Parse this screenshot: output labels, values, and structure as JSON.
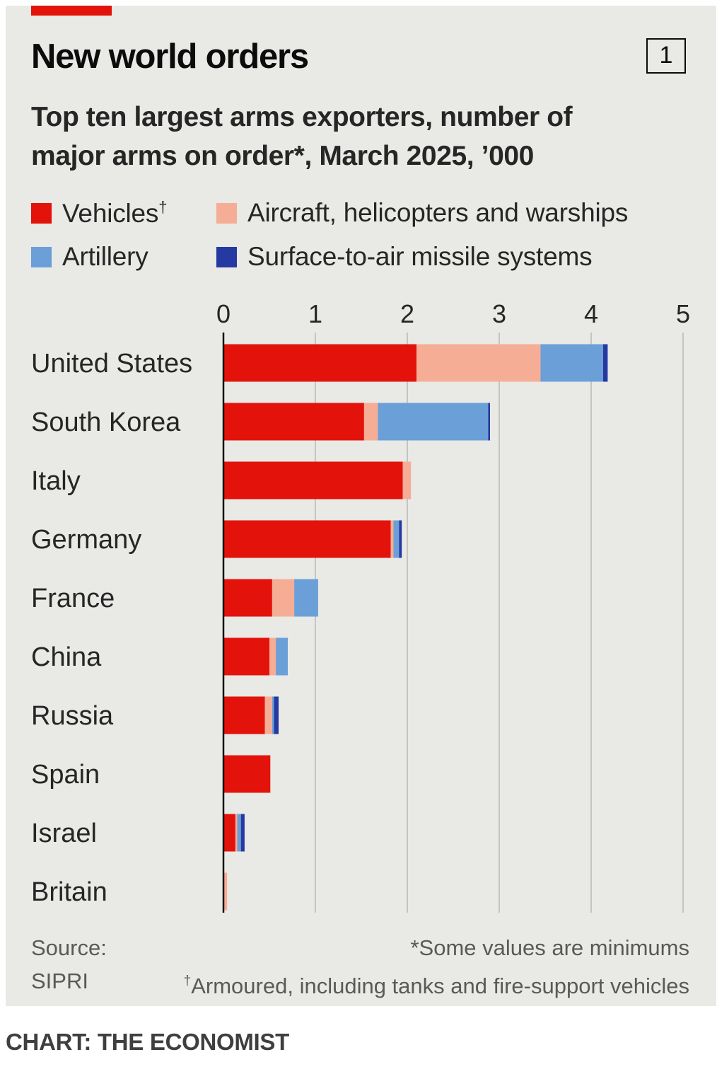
{
  "title": "New world orders",
  "chart_number": "1",
  "subtitle": "Top ten largest arms exporters, number of major arms on order*, March 2025, ’000",
  "footer": {
    "source_label": "Source:",
    "source_name": "SIPRI",
    "note_minimums": "*Some values are minimums",
    "note_armoured_mark": "†",
    "note_armoured": "Armoured, including tanks and fire-support vehicles",
    "credit": "CHART: THE ECONOMIST"
  },
  "chart_data": {
    "type": "bar",
    "orientation": "horizontal",
    "stacked": true,
    "title": "New world orders",
    "subtitle": "Top ten largest arms exporters, number of major arms on order*, March 2025, ’000",
    "legend_position": "top",
    "grid": true,
    "xlim": [
      0,
      5
    ],
    "x_ticks": [
      "0",
      "1",
      "2",
      "3",
      "4",
      "5"
    ],
    "categories": [
      "United States",
      "South Korea",
      "Italy",
      "Germany",
      "France",
      "China",
      "Russia",
      "Spain",
      "Israel",
      "Britain"
    ],
    "series": [
      {
        "name": "Vehicles",
        "name_mark": "†",
        "color": "#e3120b",
        "values": [
          2.1,
          1.53,
          1.95,
          1.82,
          0.53,
          0.5,
          0.45,
          0.51,
          0.13,
          0.0
        ]
      },
      {
        "name": "Aircraft, helicopters and warships",
        "color": "#f6ad96",
        "values": [
          1.35,
          0.15,
          0.09,
          0.03,
          0.24,
          0.07,
          0.08,
          0.0,
          0.02,
          0.04
        ]
      },
      {
        "name": "Artillery",
        "color": "#6b9fd8",
        "values": [
          0.68,
          1.2,
          0.0,
          0.06,
          0.26,
          0.13,
          0.02,
          0.0,
          0.04,
          0.0
        ]
      },
      {
        "name": "Surface-to-air missile systems",
        "color": "#2539a3",
        "values": [
          0.05,
          0.02,
          0.0,
          0.03,
          0.0,
          0.0,
          0.05,
          0.0,
          0.04,
          0.0
        ]
      }
    ],
    "source": "SIPRI",
    "notes": [
      "*Some values are minimums",
      "†Armoured, including tanks and fire-support vehicles"
    ]
  }
}
